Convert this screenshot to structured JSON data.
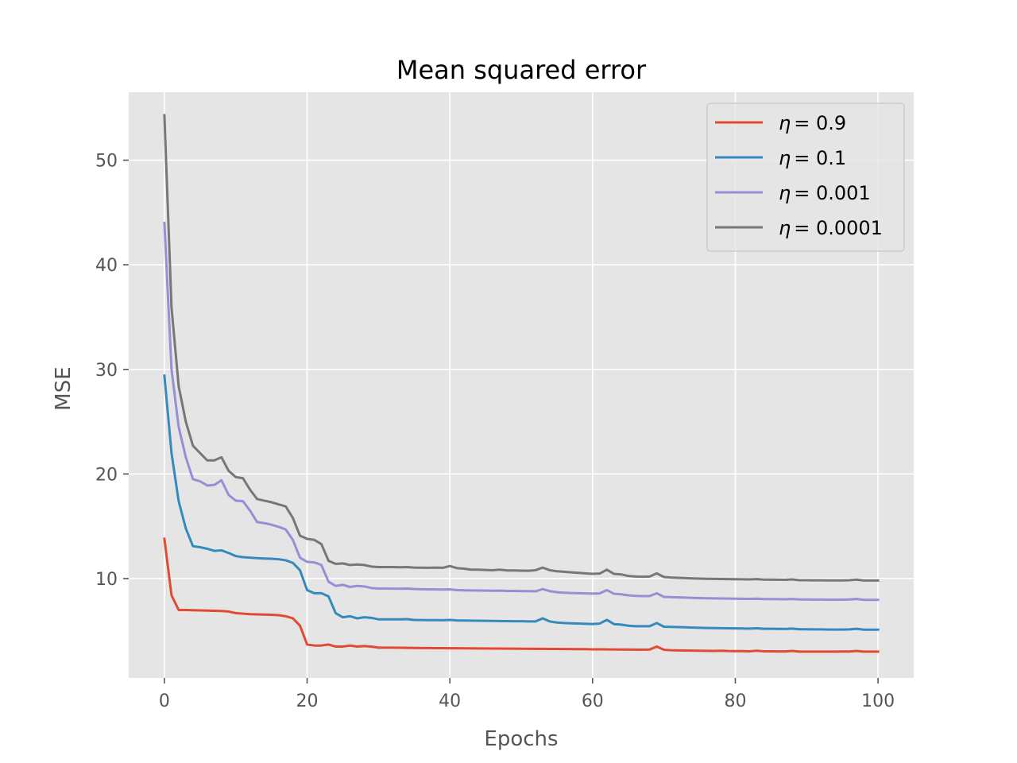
{
  "chart_data": {
    "type": "line",
    "title": "Mean squared error",
    "xlabel": "Epochs",
    "ylabel": "MSE",
    "xlim": [
      -5,
      105
    ],
    "ylim": [
      0.5,
      56.5
    ],
    "xticks": [
      0,
      20,
      40,
      60,
      80,
      100
    ],
    "yticks": [
      10,
      20,
      30,
      40,
      50
    ],
    "grid": true,
    "legend_position": "top-right",
    "x": [
      0,
      1,
      2,
      3,
      4,
      5,
      6,
      7,
      8,
      9,
      10,
      11,
      12,
      13,
      14,
      15,
      16,
      17,
      18,
      19,
      20,
      21,
      22,
      23,
      24,
      25,
      26,
      27,
      28,
      29,
      30,
      31,
      32,
      33,
      34,
      35,
      36,
      37,
      38,
      39,
      40,
      41,
      42,
      43,
      44,
      45,
      46,
      47,
      48,
      49,
      50,
      51,
      52,
      53,
      54,
      55,
      56,
      57,
      58,
      59,
      60,
      61,
      62,
      63,
      64,
      65,
      66,
      67,
      68,
      69,
      70,
      71,
      72,
      73,
      74,
      75,
      76,
      77,
      78,
      79,
      80,
      81,
      82,
      83,
      84,
      85,
      86,
      87,
      88,
      89,
      90,
      91,
      92,
      93,
      94,
      95,
      96,
      97,
      98,
      99,
      100
    ],
    "series": [
      {
        "name": "η = 0.9",
        "name_symbol": "η",
        "name_value": "= 0.9",
        "color": "#E24A33",
        "values": [
          13.8,
          8.4,
          7.0,
          7.0,
          6.98,
          6.96,
          6.94,
          6.92,
          6.9,
          6.85,
          6.7,
          6.65,
          6.6,
          6.58,
          6.56,
          6.54,
          6.5,
          6.4,
          6.2,
          5.5,
          3.7,
          3.6,
          3.6,
          3.7,
          3.5,
          3.5,
          3.6,
          3.5,
          3.55,
          3.5,
          3.4,
          3.4,
          3.4,
          3.39,
          3.38,
          3.37,
          3.36,
          3.36,
          3.35,
          3.35,
          3.34,
          3.34,
          3.33,
          3.33,
          3.32,
          3.32,
          3.31,
          3.31,
          3.3,
          3.3,
          3.29,
          3.29,
          3.28,
          3.28,
          3.27,
          3.27,
          3.26,
          3.26,
          3.25,
          3.25,
          3.24,
          3.24,
          3.23,
          3.23,
          3.22,
          3.22,
          3.21,
          3.21,
          3.22,
          3.5,
          3.2,
          3.15,
          3.13,
          3.12,
          3.11,
          3.1,
          3.09,
          3.08,
          3.1,
          3.07,
          3.06,
          3.06,
          3.05,
          3.1,
          3.05,
          3.05,
          3.04,
          3.04,
          3.08,
          3.02,
          3.02,
          3.02,
          3.02,
          3.02,
          3.02,
          3.03,
          3.03,
          3.08,
          3.02,
          3.02,
          3.02
        ]
      },
      {
        "name": "η = 0.1",
        "name_symbol": "η",
        "name_value": "= 0.1",
        "color": "#348ABD",
        "values": [
          29.4,
          22.0,
          17.4,
          14.8,
          13.1,
          13.0,
          12.85,
          12.65,
          12.7,
          12.45,
          12.15,
          12.05,
          12.0,
          11.95,
          11.92,
          11.9,
          11.85,
          11.75,
          11.5,
          10.8,
          8.9,
          8.6,
          8.6,
          8.3,
          6.7,
          6.3,
          6.4,
          6.2,
          6.3,
          6.25,
          6.1,
          6.1,
          6.1,
          6.1,
          6.12,
          6.05,
          6.04,
          6.03,
          6.03,
          6.02,
          6.05,
          6.0,
          5.99,
          5.98,
          5.97,
          5.96,
          5.95,
          5.94,
          5.93,
          5.92,
          5.92,
          5.9,
          5.9,
          6.2,
          5.9,
          5.8,
          5.75,
          5.72,
          5.7,
          5.68,
          5.66,
          5.7,
          6.05,
          5.65,
          5.6,
          5.5,
          5.45,
          5.45,
          5.45,
          5.75,
          5.4,
          5.38,
          5.36,
          5.34,
          5.32,
          5.3,
          5.28,
          5.27,
          5.26,
          5.25,
          5.24,
          5.23,
          5.22,
          5.25,
          5.2,
          5.2,
          5.19,
          5.18,
          5.22,
          5.15,
          5.15,
          5.14,
          5.14,
          5.13,
          5.13,
          5.13,
          5.14,
          5.2,
          5.12,
          5.12,
          5.12
        ]
      },
      {
        "name": "η = 0.001",
        "name_symbol": "η",
        "name_value": "= 0.001",
        "color": "#988ED5",
        "values": [
          44.0,
          30.0,
          24.5,
          21.6,
          19.5,
          19.3,
          18.9,
          18.95,
          19.4,
          18.0,
          17.45,
          17.4,
          16.5,
          15.4,
          15.3,
          15.15,
          14.95,
          14.7,
          13.7,
          12.0,
          11.6,
          11.55,
          11.3,
          9.7,
          9.3,
          9.4,
          9.2,
          9.3,
          9.25,
          9.1,
          9.05,
          9.05,
          9.04,
          9.03,
          9.05,
          9.0,
          8.98,
          8.97,
          8.96,
          8.95,
          8.97,
          8.9,
          8.88,
          8.87,
          8.86,
          8.85,
          8.84,
          8.85,
          8.82,
          8.82,
          8.8,
          8.8,
          8.78,
          9.0,
          8.8,
          8.7,
          8.65,
          8.62,
          8.6,
          8.58,
          8.56,
          8.58,
          8.9,
          8.55,
          8.5,
          8.4,
          8.35,
          8.33,
          8.33,
          8.6,
          8.25,
          8.22,
          8.2,
          8.18,
          8.16,
          8.14,
          8.12,
          8.11,
          8.1,
          8.09,
          8.08,
          8.07,
          8.06,
          8.08,
          8.04,
          8.04,
          8.03,
          8.02,
          8.05,
          8.0,
          8.0,
          7.99,
          7.99,
          7.98,
          7.98,
          7.98,
          8.0,
          8.05,
          7.97,
          7.97,
          7.97
        ]
      },
      {
        "name": "η = 0.0001",
        "name_symbol": "η",
        "name_value": "= 0.0001",
        "color": "#777777",
        "values": [
          54.3,
          35.9,
          28.4,
          25.0,
          22.7,
          22.0,
          21.3,
          21.3,
          21.6,
          20.3,
          19.7,
          19.6,
          18.5,
          17.6,
          17.45,
          17.3,
          17.1,
          16.9,
          15.8,
          14.1,
          13.8,
          13.7,
          13.3,
          11.7,
          11.4,
          11.45,
          11.3,
          11.35,
          11.3,
          11.15,
          11.1,
          11.1,
          11.1,
          11.08,
          11.1,
          11.05,
          11.04,
          11.03,
          11.05,
          11.03,
          11.2,
          11.0,
          10.95,
          10.85,
          10.85,
          10.82,
          10.8,
          10.85,
          10.78,
          10.78,
          10.76,
          10.75,
          10.8,
          11.05,
          10.8,
          10.7,
          10.65,
          10.6,
          10.55,
          10.5,
          10.45,
          10.48,
          10.85,
          10.45,
          10.4,
          10.25,
          10.2,
          10.18,
          10.2,
          10.5,
          10.15,
          10.1,
          10.07,
          10.05,
          10.02,
          10.0,
          9.98,
          9.97,
          9.96,
          9.95,
          9.94,
          9.93,
          9.92,
          9.95,
          9.9,
          9.9,
          9.89,
          9.88,
          9.92,
          9.85,
          9.85,
          9.84,
          9.84,
          9.83,
          9.83,
          9.83,
          9.85,
          9.9,
          9.82,
          9.82,
          9.82
        ]
      }
    ]
  },
  "colors": {
    "plot_background": "#E5E5E5",
    "grid": "#FFFFFF",
    "legend_background": "#E5E5E5",
    "legend_border": "#CCCCCC"
  }
}
